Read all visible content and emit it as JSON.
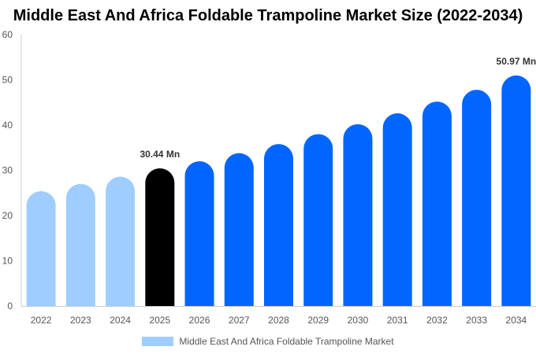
{
  "title": "Middle East And Africa Foldable Trampoline Market Size (2022-2034)",
  "legend_label": "Middle East And Africa Foldable Trampoline Market",
  "colors": {
    "historical": "#a0cdff",
    "base_year": "#000000",
    "forecast": "#0066ff",
    "axis": "#cccccc",
    "tick_text": "#555555",
    "annotation_text": "#333333"
  },
  "chart_data": {
    "type": "bar",
    "title": "Middle East And Africa Foldable Trampoline Market Size (2022-2034)",
    "categories": [
      "2022",
      "2023",
      "2024",
      "2025",
      "2026",
      "2027",
      "2028",
      "2029",
      "2030",
      "2031",
      "2032",
      "2033",
      "2034"
    ],
    "series": [
      {
        "name": "Middle East And Africa Foldable Trampoline Market",
        "values": [
          25.4,
          27.0,
          28.6,
          30.44,
          32.0,
          33.8,
          35.8,
          38.0,
          40.2,
          42.6,
          45.2,
          47.8,
          50.97
        ]
      }
    ],
    "bar_color_groups": [
      "historical",
      "historical",
      "historical",
      "base_year",
      "forecast",
      "forecast",
      "forecast",
      "forecast",
      "forecast",
      "forecast",
      "forecast",
      "forecast",
      "forecast"
    ],
    "data_labels": [
      {
        "index": 3,
        "text": "30.44 Mn"
      },
      {
        "index": 12,
        "text": "50.97 Mn"
      }
    ],
    "ylim": [
      0,
      60
    ],
    "yticks": [
      0,
      10,
      20,
      30,
      40,
      50,
      60
    ],
    "xlabel": "",
    "ylabel": "",
    "grid": false,
    "legend_position": "bottom"
  }
}
